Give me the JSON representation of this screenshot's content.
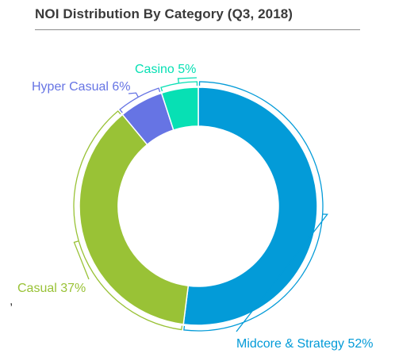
{
  "chart_data": {
    "type": "pie",
    "variant": "donut",
    "title": "NOI Distribution By Category (Q3, 2018)",
    "slices": [
      {
        "label": "Midcore & Strategy",
        "value": 52,
        "display": "Midcore & Strategy 52%",
        "color": "#039bd8"
      },
      {
        "label": "Casual",
        "value": 37,
        "display": "Casual 37%",
        "color": "#99c236"
      },
      {
        "label": "Hyper Casual",
        "value": 6,
        "display": "Hyper Casual 6%",
        "color": "#6674e4"
      },
      {
        "label": "Casino",
        "value": 5,
        "display": "Casino 5%",
        "color": "#07e0b4"
      }
    ]
  },
  "stray_mark": ","
}
